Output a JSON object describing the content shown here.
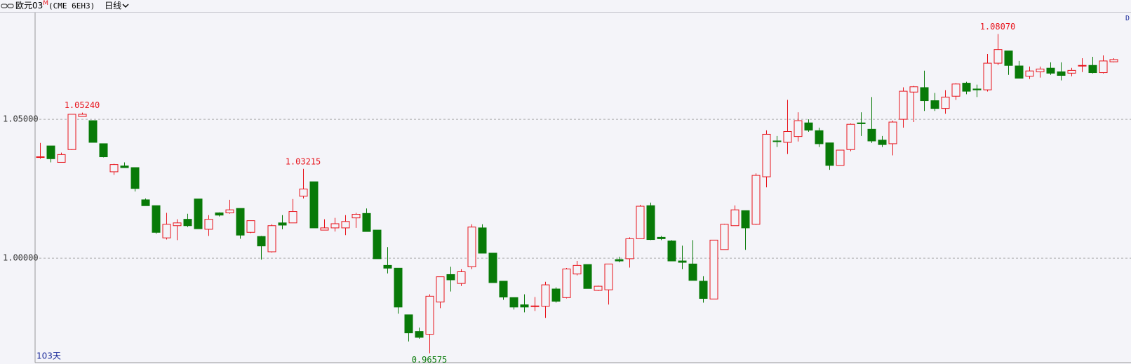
{
  "header": {
    "title": "欧元03",
    "superscript": "M",
    "contract": "(CME 6EH3)",
    "period": "日线"
  },
  "chart_data": {
    "type": "candlestick",
    "open": [
      1.0363,
      1.0404,
      1.0345,
      1.0391,
      1.051,
      1.0495,
      1.0412,
      1.0311,
      1.0332,
      1.0326,
      1.021,
      1.0189,
      1.0073,
      1.0117,
      1.014,
      1.0213,
      1.0104,
      1.0163,
      1.0163,
      1.0179,
      1.0093,
      1.0078,
      1.0023,
      1.0127,
      1.0127,
      1.0223,
      1.0275,
      1.0101,
      1.0109,
      1.0109,
      1.0145,
      1.0161,
      1.0101,
      0.9974,
      0.9964,
      0.9796,
      0.9736,
      0.9726,
      0.9842,
      0.9941,
      0.9909,
      0.9969,
      1.0109,
      1.0018,
      0.9917,
      0.9858,
      0.9832,
      0.9827,
      0.9827,
      0.9889,
      0.9858,
      0.9943,
      0.9977,
      0.9884,
      0.9886,
      0.9995,
      0.9998,
      1.007,
      1.0189,
      1.0075,
      1.0062,
      0.999,
      0.9979,
      0.9917,
      0.9853,
      1.0031,
      1.0117,
      1.0171,
      1.0122,
      1.0293,
      1.0422,
      1.0417,
      1.0438,
      1.0487,
      1.0459,
      1.0415,
      1.0334,
      1.0391,
      1.0487,
      1.0464,
      1.0425,
      1.0412,
      1.05,
      1.0598,
      1.0614,
      1.0567,
      1.0539,
      1.0583,
      1.063,
      1.0609,
      1.0606,
      1.0702,
      1.0746,
      1.0692,
      1.0655,
      1.0671,
      1.0684,
      1.0671,
      1.0666,
      1.0692,
      1.0694,
      1.0668,
      1.0707
    ],
    "high": [
      1.0415,
      1.0404,
      1.038,
      1.0518,
      1.0524,
      1.0495,
      1.0412,
      1.034,
      1.0345,
      1.0326,
      1.0215,
      1.0189,
      1.0163,
      1.014,
      1.016,
      1.0213,
      1.0155,
      1.0165,
      1.021,
      1.0179,
      1.0135,
      1.008,
      1.0122,
      1.0155,
      1.0213,
      1.03215,
      1.0275,
      1.014,
      1.0145,
      1.0155,
      1.0163,
      1.0179,
      1.0101,
      1.004,
      0.9964,
      0.9796,
      0.975,
      0.987,
      0.9933,
      0.9969,
      0.996,
      1.0122,
      1.0122,
      1.0018,
      0.9917,
      0.9858,
      0.987,
      0.986,
      0.9915,
      0.9895,
      0.9965,
      0.999,
      0.9977,
      0.9901,
      0.9979,
      1.0005,
      1.0075,
      1.0192,
      1.02,
      1.008,
      1.0065,
      1.0045,
      1.0065,
      0.9935,
      1.0065,
      1.0124,
      1.019,
      1.0171,
      1.0305,
      1.046,
      1.044,
      1.057,
      1.0525,
      1.05,
      1.047,
      1.0415,
      1.0389,
      1.0485,
      1.0525,
      1.058,
      1.044,
      1.0495,
      1.0615,
      1.062,
      1.0675,
      1.0595,
      1.0605,
      1.063,
      1.0635,
      1.0625,
      1.0735,
      1.0807,
      1.0746,
      1.071,
      1.069,
      1.069,
      1.0705,
      1.0705,
      1.0685,
      1.072,
      1.0725,
      1.073,
      1.072
    ],
    "low": [
      1.0358,
      1.0345,
      1.0345,
      1.0389,
      1.051,
      1.0417,
      1.0363,
      1.03,
      1.0326,
      1.024,
      1.0189,
      1.0088,
      1.0067,
      1.0065,
      1.0112,
      1.0106,
      1.008,
      1.015,
      1.016,
      1.007,
      1.009,
      0.9995,
      1.002,
      1.0104,
      1.0127,
      1.0215,
      1.0109,
      1.0101,
      1.0096,
      1.0083,
      1.0109,
      1.0096,
      0.9998,
      0.9945,
      0.98,
      0.97,
      0.971,
      0.96575,
      0.982,
      0.988,
      0.99,
      0.996,
      1.0018,
      0.9912,
      0.985,
      0.9815,
      0.9805,
      0.981,
      0.9785,
      0.984,
      0.9855,
      0.9938,
      0.9891,
      0.9882,
      0.9833,
      0.9985,
      0.9966,
      1.007,
      1.0065,
      1.0065,
      0.999,
      0.996,
      0.992,
      0.984,
      0.9853,
      1.0031,
      1.0117,
      1.003,
      1.012,
      1.0255,
      1.04,
      1.0375,
      1.042,
      1.0455,
      1.04,
      1.0318,
      1.0334,
      1.0385,
      1.044,
      1.0415,
      1.04,
      1.037,
      1.047,
      1.049,
      1.053,
      1.053,
      1.052,
      1.057,
      1.059,
      1.058,
      1.06,
      1.0695,
      1.066,
      1.0648,
      1.0645,
      1.065,
      1.066,
      1.064,
      1.0655,
      1.067,
      1.0665,
      1.0665,
      1.0705
    ],
    "close": [
      1.0365,
      1.0358,
      1.0373,
      1.0518,
      1.0518,
      1.0417,
      1.0365,
      1.0337,
      1.0326,
      1.0251,
      1.0189,
      1.0093,
      1.0122,
      1.0127,
      1.0117,
      1.0106,
      1.014,
      1.0155,
      1.0174,
      1.0083,
      1.0135,
      1.0044,
      1.0117,
      1.0119,
      1.0168,
      1.0249,
      1.0109,
      1.0109,
      1.0124,
      1.0132,
      1.0158,
      1.0096,
      0.9998,
      0.9964,
      0.9824,
      0.9731,
      0.9715,
      0.9863,
      0.9933,
      0.9922,
      0.9951,
      1.0112,
      1.0018,
      0.9912,
      0.986,
      0.9824,
      0.9824,
      0.9828,
      0.9904,
      0.9845,
      0.9961,
      0.9974,
      0.9891,
      0.9899,
      0.9979,
      0.999,
      1.007,
      1.0187,
      1.0067,
      1.007,
      0.999,
      0.9985,
      0.992,
      0.9855,
      1.0065,
      1.0122,
      1.0174,
      1.0109,
      1.0298,
      1.0446,
      1.042,
      1.0456,
      1.0495,
      1.0461,
      1.0412,
      1.0334,
      1.0389,
      1.0482,
      1.0484,
      1.0422,
      1.0409,
      1.049,
      1.0601,
      1.0617,
      1.0567,
      1.0539,
      1.058,
      1.0627,
      1.0601,
      1.0606,
      1.0702,
      1.0751,
      1.0694,
      1.0648,
      1.0674,
      1.0681,
      1.0666,
      1.0658,
      1.0676,
      1.0694,
      1.0668,
      1.071,
      1.0715
    ],
    "ylim": [
      0.9624,
      1.0884
    ],
    "yticks": [
      {
        "value": 1.0,
        "label": "1.00000"
      },
      {
        "value": 1.05,
        "label": "1.05000"
      }
    ],
    "grid": true,
    "up_color": "#e8141c",
    "down_color": "#087a08",
    "annotations": [
      {
        "label": "1.05240",
        "value": 1.0524,
        "color": "#e8141c"
      },
      {
        "label": "1.03215",
        "value": 1.03215,
        "color": "#e8141c"
      },
      {
        "label": "0.96575",
        "value": 0.96575,
        "color": "#087a08"
      },
      {
        "label": "1.08070",
        "value": 1.0807,
        "color": "#e8141c"
      }
    ],
    "days_label": "103天",
    "corner_label": "D"
  }
}
